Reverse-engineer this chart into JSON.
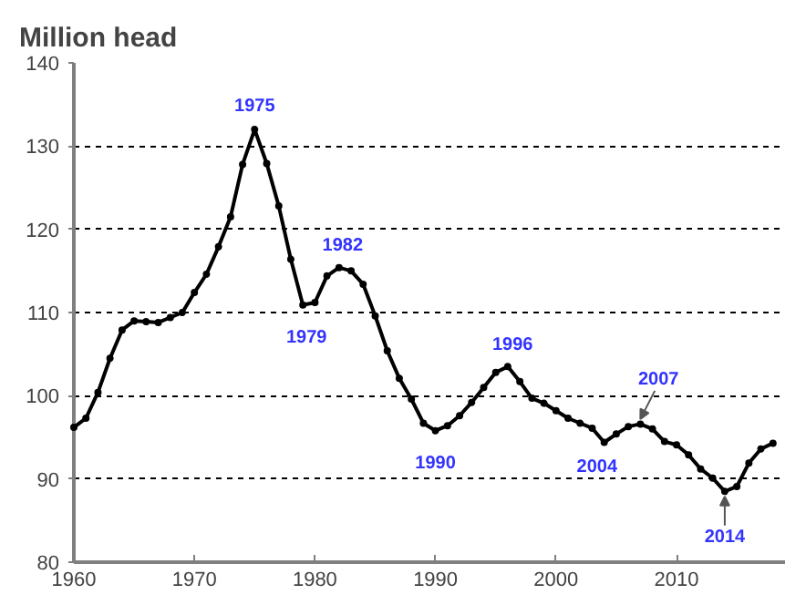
{
  "chart_data": {
    "type": "line",
    "title": "Million head",
    "x": [
      1960,
      1961,
      1962,
      1963,
      1964,
      1965,
      1966,
      1967,
      1968,
      1969,
      1970,
      1971,
      1972,
      1973,
      1974,
      1975,
      1976,
      1977,
      1978,
      1979,
      1980,
      1981,
      1982,
      1983,
      1984,
      1985,
      1986,
      1987,
      1988,
      1989,
      1990,
      1991,
      1992,
      1993,
      1994,
      1995,
      1996,
      1997,
      1998,
      1999,
      2000,
      2001,
      2002,
      2003,
      2004,
      2005,
      2006,
      2007,
      2008,
      2009,
      2010,
      2011,
      2012,
      2013,
      2014,
      2015,
      2016,
      2017,
      2018
    ],
    "series": [
      {
        "color": "#000000",
        "values": [
          96.2,
          97.3,
          100.4,
          104.5,
          107.9,
          109.0,
          108.9,
          108.8,
          109.4,
          110.0,
          112.4,
          114.6,
          117.9,
          121.5,
          127.8,
          132.0,
          127.9,
          122.8,
          116.4,
          110.9,
          111.2,
          114.4,
          115.4,
          115.0,
          113.4,
          109.6,
          105.4,
          102.1,
          99.6,
          96.7,
          95.8,
          96.4,
          97.6,
          99.2,
          101.0,
          102.8,
          103.5,
          101.7,
          99.7,
          99.1,
          98.2,
          97.3,
          96.7,
          96.1,
          94.4,
          95.4,
          96.3,
          96.6,
          96.0,
          94.5,
          94.1,
          92.9,
          91.2,
          90.1,
          88.5,
          89.1,
          91.9,
          93.6,
          94.3
        ]
      }
    ],
    "xlim": [
      1960,
      2019
    ],
    "ylim": [
      80,
      140
    ],
    "xticks": [
      1960,
      1970,
      1980,
      1990,
      2000,
      2010
    ],
    "yticks": [
      80,
      90,
      100,
      110,
      120,
      130,
      140
    ],
    "grid": "y",
    "marker": "circle",
    "line_style": "solid",
    "annotations": [
      {
        "text": "1975",
        "x": 1975,
        "y": 132.0
      },
      {
        "text": "1979",
        "x": 1979,
        "y": 110.9
      },
      {
        "text": "1982",
        "x": 1982,
        "y": 115.4
      },
      {
        "text": "1990",
        "x": 1990,
        "y": 95.8
      },
      {
        "text": "1996",
        "x": 1996,
        "y": 103.5
      },
      {
        "text": "2004",
        "x": 2004,
        "y": 94.4
      },
      {
        "text": "2007",
        "x": 2007,
        "y": 96.6
      },
      {
        "text": "2014",
        "x": 2014,
        "y": 88.5
      }
    ]
  }
}
